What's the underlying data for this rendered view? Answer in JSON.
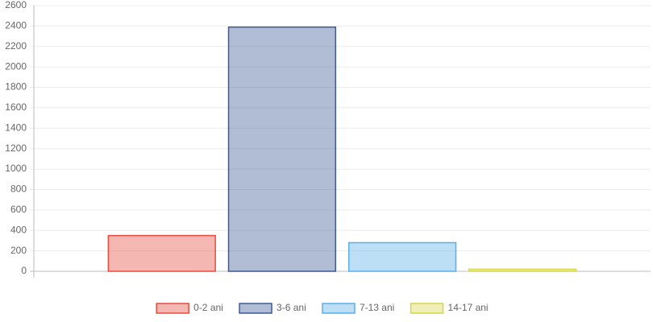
{
  "chart_data": {
    "type": "bar",
    "categories": [
      null
    ],
    "series": [
      {
        "name": "0-2 ani",
        "color": "#e74c3c",
        "values": [
          350
        ]
      },
      {
        "name": "3-6 ani",
        "color": "#3d5a96",
        "values": [
          2390
        ]
      },
      {
        "name": "7-13 ani",
        "color": "#5aaee8",
        "values": [
          280
        ]
      },
      {
        "name": "14-17 ani",
        "color": "#d6d64a",
        "values": [
          20
        ]
      }
    ],
    "ylim": [
      0,
      2600
    ],
    "yticks": [
      0,
      200,
      400,
      600,
      800,
      1000,
      1200,
      1400,
      1600,
      1800,
      2000,
      2200,
      2400,
      2600
    ],
    "grid": true,
    "legend": "bottom"
  }
}
